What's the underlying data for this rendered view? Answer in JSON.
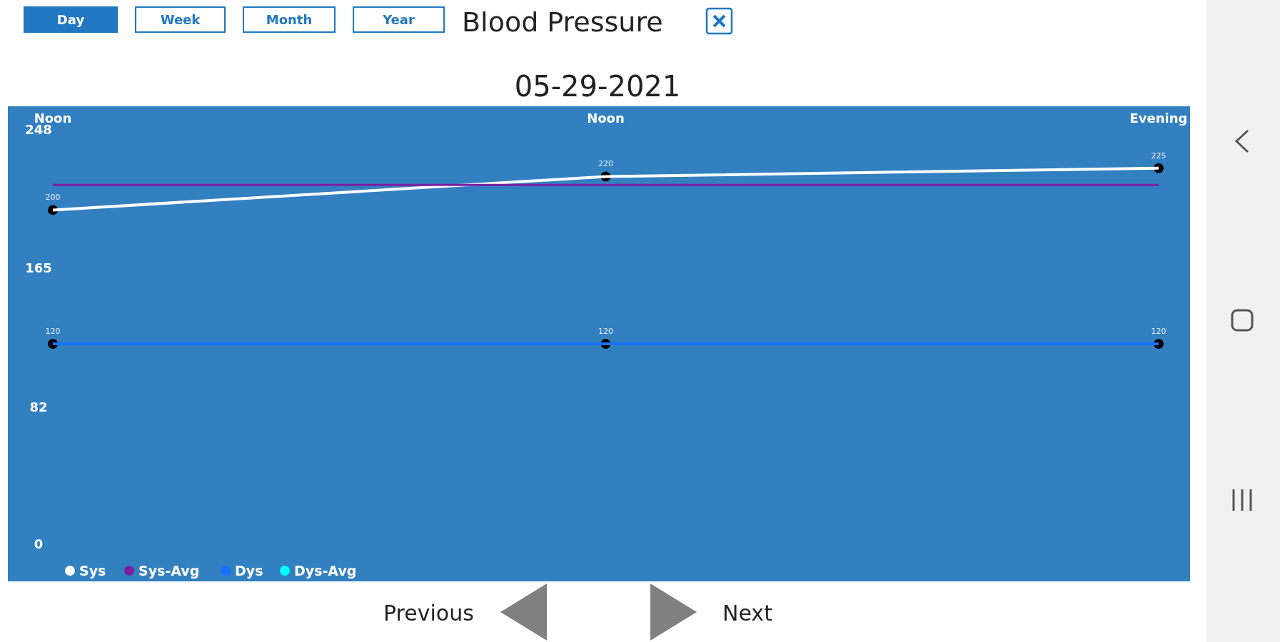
{
  "chart_data": {
    "type": "line",
    "title": "Blood Pressure",
    "subtitle": "05-29-2021",
    "categories": [
      "Noon",
      "Noon",
      "Evening"
    ],
    "series": [
      {
        "name": "Sys",
        "color": "#ffffff",
        "values": [
          200,
          220,
          225
        ],
        "marker": "circle",
        "value_labels": [
          "200",
          "220",
          "225"
        ]
      },
      {
        "name": "Sys-Avg",
        "color": "#7b1fa2",
        "values": [
          215,
          215,
          215
        ],
        "marker": "none"
      },
      {
        "name": "Dys",
        "color": "#1a73ff",
        "values": [
          120,
          120,
          120
        ],
        "marker": "circle",
        "value_labels": [
          "120",
          "120",
          "120"
        ]
      },
      {
        "name": "Dys-Avg",
        "color": "#00ffff",
        "values": [
          null,
          null,
          null
        ],
        "marker": "none"
      }
    ],
    "ylim": [
      -22,
      262
    ],
    "yticks": [
      0,
      82,
      165,
      248
    ],
    "grid": false,
    "legend": "bottom left",
    "annotations": [
      "Day",
      "Week",
      "Month",
      "Year",
      "Previous",
      "Next"
    ]
  }
}
